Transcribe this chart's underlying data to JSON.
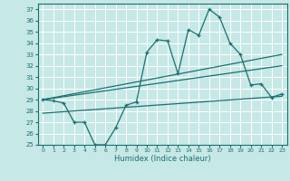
{
  "xlabel": "Humidex (Indice chaleur)",
  "xlim": [
    -0.5,
    23.5
  ],
  "ylim": [
    25,
    37.5
  ],
  "yticks": [
    25,
    26,
    27,
    28,
    29,
    30,
    31,
    32,
    33,
    34,
    35,
    36,
    37
  ],
  "xticks": [
    0,
    1,
    2,
    3,
    4,
    5,
    6,
    7,
    8,
    9,
    10,
    11,
    12,
    13,
    14,
    15,
    16,
    17,
    18,
    19,
    20,
    21,
    22,
    23
  ],
  "bg_color": "#c6e8e6",
  "grid_color": "#ffffff",
  "line_color": "#1a7070",
  "line1_x": [
    0,
    1,
    2,
    3,
    4,
    5,
    6,
    7,
    8,
    9,
    10,
    11,
    12,
    13,
    14,
    15,
    16,
    17,
    18,
    19,
    20,
    21,
    22,
    23
  ],
  "line1_y": [
    29.0,
    28.9,
    28.7,
    27.0,
    27.0,
    25.0,
    25.0,
    26.5,
    28.5,
    28.8,
    33.2,
    34.3,
    34.2,
    31.3,
    35.2,
    34.7,
    37.0,
    36.3,
    34.0,
    33.0,
    30.3,
    30.4,
    29.2,
    29.5
  ],
  "line2_x": [
    0,
    23
  ],
  "line2_y": [
    29.0,
    33.0
  ],
  "line3_x": [
    0,
    23
  ],
  "line3_y": [
    29.0,
    32.0
  ],
  "line4_x": [
    0,
    23
  ],
  "line4_y": [
    27.8,
    29.3
  ]
}
